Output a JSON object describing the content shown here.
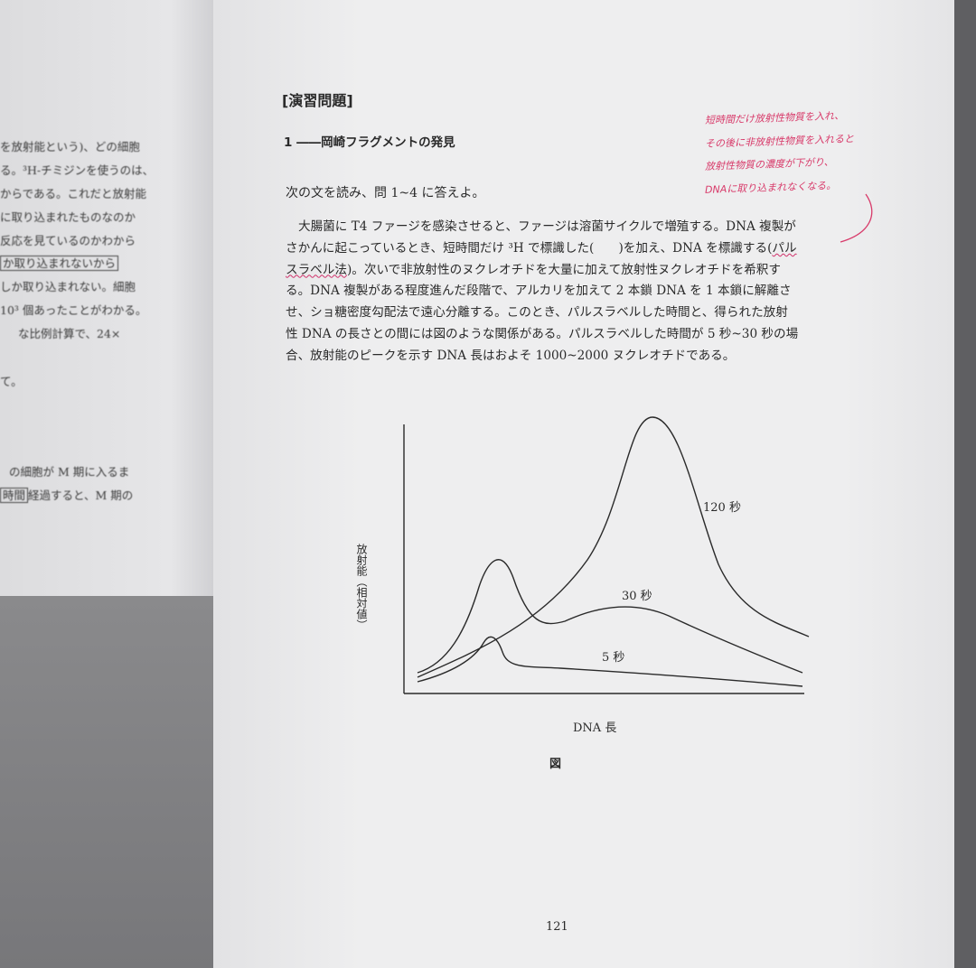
{
  "left_page": {
    "lines": [
      "を放射能という)、どの細胞",
      "る。³H-チミジンを使うのは、",
      "からである。これだと放射能",
      "に取り込まれたものなのか",
      "反応を見ているのかわから",
      "か取り込まれないから",
      "しか取り込まれない。細胞",
      "10³ 個あったことがわかる。",
      "な比例計算で、24×",
      "",
      "て。",
      "の細胞が M 期に入るま",
      "時間",
      "経過すると、M 期の"
    ]
  },
  "right_page": {
    "heading": "[演習問題]",
    "question_title": "1 ――岡崎フラグメントの発見",
    "instruction": "次の文を読み、問 1~4 に答えよ。",
    "paragraph": [
      "大腸菌に T4 ファージを感染させると、ファージは溶菌サイクルで増殖する。DNA 複製が",
      "さかんに起こっているとき、短時間だけ ³H で標識した(　　)を加え、DNA を標識する",
      "パル",
      "スラベル法",
      "。次いで非放射性のヌクレオチドを大量に加えて放射性ヌクレオチドを希釈す",
      "る。DNA 複製がある程度進んだ段階で、アルカリを加えて 2 本鎖 DNA を 1 本鎖に解離さ",
      "せ、ショ糖密度勾配法で遠心分離する。このとき、パルスラベルした時間と、得られた放射",
      "性 DNA の長さとの間には図のような関係がある。パルスラベルした時間が 5 秒~30 秒の場",
      "合、放射能のピークを示す DNA 長はおよそ 1000~2000 ヌクレオチドである。"
    ],
    "handwritten_notes": [
      "短時間だけ放射性物質を入れ、",
      "その後に非放射性物質を入れると",
      "放射性物質の濃度が下がり、",
      "DNAに取り込まれなくなる。"
    ],
    "page_number": "121"
  },
  "figure": {
    "caption": "図",
    "xlabel": "DNA 長",
    "ylabel": "放射能（相対値）",
    "series_labels": [
      "120 秒",
      "30 秒",
      "5 秒"
    ],
    "ink_color": "#2a2a2a",
    "annotation_color": "#d83a6a"
  }
}
